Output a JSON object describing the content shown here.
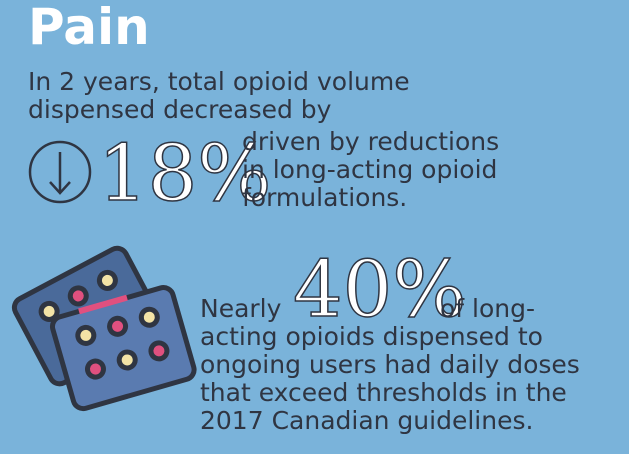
{
  "title": "Pain",
  "section1": {
    "lead": [
      "In 2 years, total opioid volume",
      "dispensed decreased by"
    ],
    "stat": "18%",
    "detail": [
      "driven by reductions",
      "in long-acting opioid",
      "formulations."
    ]
  },
  "section2": {
    "prefix": "Nearly",
    "stat": "40%",
    "detail": [
      "of long-",
      "acting opioids dispensed to",
      "ongoing users had daily doses",
      "that exceed thresholds in the",
      "2017 Canadian guidelines."
    ]
  }
}
